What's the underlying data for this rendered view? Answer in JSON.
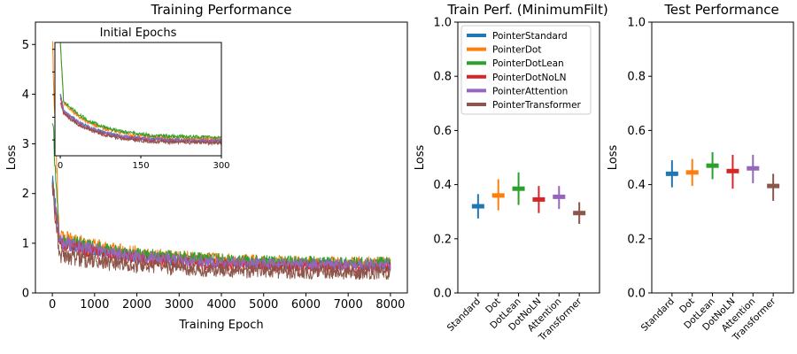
{
  "series_names": [
    "PointerStandard",
    "PointerDot",
    "PointerDotLean",
    "PointerDotNoLN",
    "PointerAttention",
    "PointerTransformer"
  ],
  "colors": [
    "#1f77b4",
    "#ff7f0e",
    "#2ca02c",
    "#d62728",
    "#9467bd",
    "#8c564b"
  ],
  "chart_data": [
    {
      "type": "line",
      "title": "Training Performance",
      "xlabel": "Training Epoch",
      "ylabel": "Loss",
      "xlim": [
        -400,
        8400
      ],
      "ylim": [
        0,
        5.45
      ],
      "xticks": [
        0,
        1000,
        2000,
        3000,
        4000,
        5000,
        6000,
        7000,
        8000
      ],
      "yticks": [
        0,
        1,
        2,
        3,
        4,
        5
      ],
      "series_summary": [
        {
          "name": "PointerStandard",
          "start": 2.3,
          "plateau_early": 0.95,
          "plateau_late": 0.55
        },
        {
          "name": "PointerDot",
          "start": 5.2,
          "plateau_early": 1.05,
          "plateau_late": 0.6
        },
        {
          "name": "PointerDotLean",
          "start": 3.5,
          "plateau_early": 1.0,
          "plateau_late": 0.6
        },
        {
          "name": "PointerDotNoLN",
          "start": 2.2,
          "plateau_early": 0.9,
          "plateau_late": 0.5
        },
        {
          "name": "PointerAttention",
          "start": 2.2,
          "plateau_early": 0.95,
          "plateau_late": 0.55
        },
        {
          "name": "PointerTransformer",
          "start": 2.2,
          "plateau_early": 0.7,
          "plateau_late": 0.4
        }
      ],
      "inset": {
        "title": "Initial Epochs",
        "xlim": [
          -10,
          300
        ],
        "ylim": [
          0.3,
          5.3
        ],
        "xticks": [
          0,
          150,
          300
        ],
        "series_summary": [
          {
            "name": "PointerStandard",
            "at_20": 2.0,
            "at_300": 0.95
          },
          {
            "name": "PointerDot",
            "at_20": 2.3,
            "at_300": 1.05
          },
          {
            "name": "PointerDotLean",
            "at_20": 2.4,
            "at_300": 1.1
          },
          {
            "name": "PointerDotNoLN",
            "at_20": 1.9,
            "at_300": 0.9
          },
          {
            "name": "PointerAttention",
            "at_20": 2.0,
            "at_300": 0.95
          },
          {
            "name": "PointerTransformer",
            "at_20": 1.9,
            "at_300": 0.85
          }
        ]
      }
    },
    {
      "type": "errorbar",
      "title": "Train Perf. (MinimumFilt)",
      "ylabel": "Loss",
      "ylim": [
        0,
        1.0
      ],
      "yticks": [
        "0.0",
        "0.2",
        "0.4",
        "0.6",
        "0.8",
        "1.0"
      ],
      "categories": [
        "Standard",
        "Dot",
        "DotLean",
        "DotNoLN",
        "Attention",
        "Transformer"
      ],
      "values": [
        0.32,
        0.36,
        0.385,
        0.345,
        0.355,
        0.295
      ],
      "lower": [
        0.275,
        0.305,
        0.325,
        0.295,
        0.31,
        0.255
      ],
      "upper": [
        0.365,
        0.42,
        0.445,
        0.395,
        0.395,
        0.335
      ],
      "legend": [
        "PointerStandard",
        "PointerDot",
        "PointerDotLean",
        "PointerDotNoLN",
        "PointerAttention",
        "PointerTransformer"
      ],
      "legend_position": "top-right"
    },
    {
      "type": "errorbar",
      "title": "Test Performance",
      "ylabel": "Loss",
      "ylim": [
        0,
        1.0
      ],
      "yticks": [
        "0.0",
        "0.2",
        "0.4",
        "0.6",
        "0.8",
        "1.0"
      ],
      "categories": [
        "Standard",
        "Dot",
        "DotLean",
        "DotNoLN",
        "Attention",
        "Transformer"
      ],
      "values": [
        0.44,
        0.445,
        0.47,
        0.45,
        0.46,
        0.395
      ],
      "lower": [
        0.39,
        0.395,
        0.42,
        0.385,
        0.405,
        0.34
      ],
      "upper": [
        0.49,
        0.495,
        0.52,
        0.51,
        0.51,
        0.44
      ]
    }
  ]
}
